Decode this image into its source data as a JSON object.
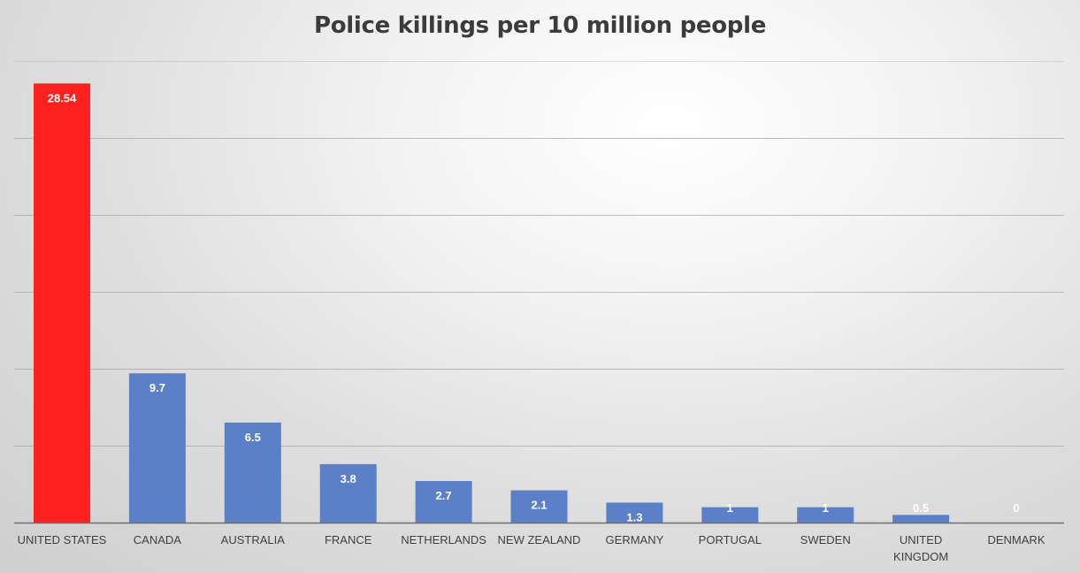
{
  "chart_data": {
    "type": "bar",
    "title": "Police killings per 10 million people",
    "xlabel": "",
    "ylabel": "",
    "categories": [
      "UNITED STATES",
      "CANADA",
      "AUSTRALIA",
      "FRANCE",
      "NETHERLANDS",
      "NEW ZEALAND",
      "GERMANY",
      "PORTUGAL",
      "SWEDEN",
      "UNITED KINGDOM",
      "DENMARK"
    ],
    "values": [
      28.54,
      9.7,
      6.5,
      3.8,
      2.7,
      2.1,
      1.3,
      1,
      1,
      0.5,
      0
    ],
    "data_labels": [
      "28.54",
      "9.7",
      "6.5",
      "3.8",
      "2.7",
      "2.1",
      "1.3",
      "1",
      "1",
      "0.5",
      "0"
    ],
    "ylim": [
      0,
      30
    ],
    "grid_step": 5,
    "grid": true,
    "legend": "none",
    "colors": {
      "highlight": "#ff2020",
      "bar": "#5b80c8",
      "gridline": "#a6a6a6",
      "axis": "#6e6e6e",
      "title": "#3b3b3b"
    },
    "highlight_index": 0
  }
}
